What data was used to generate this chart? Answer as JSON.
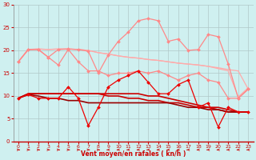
{
  "x": [
    0,
    1,
    2,
    3,
    4,
    5,
    6,
    7,
    8,
    9,
    10,
    11,
    12,
    13,
    14,
    15,
    16,
    17,
    18,
    19,
    20,
    21,
    22,
    23
  ],
  "bg_color": "#cff0f0",
  "grid_color": "#b0c8c8",
  "xlabel": "Vent moyen/en rafales ( kn/h )",
  "xlabel_color": "#cc0000",
  "tick_color": "#cc0000",
  "xlim": [
    -0.5,
    23.5
  ],
  "ylim": [
    0,
    30
  ],
  "yticks": [
    0,
    5,
    10,
    15,
    20,
    25,
    30
  ],
  "series": [
    {
      "name": "light_pink_smooth1",
      "color": "#ffaaaa",
      "lw": 0.9,
      "marker": null,
      "y": [
        17.5,
        20.2,
        20.3,
        20.2,
        20.3,
        20.3,
        20.2,
        20.0,
        19.5,
        19.2,
        18.8,
        18.5,
        18.3,
        18.0,
        17.8,
        17.5,
        17.2,
        17.0,
        16.8,
        16.5,
        16.2,
        15.8,
        15.5,
        11.5
      ]
    },
    {
      "name": "light_pink_smooth2",
      "color": "#ffaaaa",
      "lw": 0.9,
      "marker": null,
      "y": [
        17.5,
        20.2,
        20.3,
        20.2,
        20.3,
        20.3,
        20.2,
        20.0,
        19.5,
        19.2,
        18.8,
        18.5,
        18.3,
        18.0,
        17.8,
        17.5,
        17.2,
        17.0,
        16.8,
        16.5,
        16.0,
        15.5,
        9.8,
        11.8
      ]
    },
    {
      "name": "pink_dots_upper",
      "color": "#ff8888",
      "lw": 0.9,
      "marker": "D",
      "ms": 2.0,
      "y": [
        17.5,
        20.2,
        20.2,
        18.5,
        20.2,
        20.3,
        20.2,
        19.8,
        15.0,
        19.0,
        22.0,
        24.0,
        26.5,
        27.0,
        26.5,
        22.0,
        22.5,
        20.0,
        20.2,
        23.5,
        23.0,
        17.0,
        9.5,
        11.5
      ]
    },
    {
      "name": "pink_dots_lower",
      "color": "#ff8888",
      "lw": 0.9,
      "marker": "D",
      "ms": 2.0,
      "y": [
        17.5,
        20.2,
        20.2,
        18.5,
        16.8,
        20.2,
        17.5,
        15.5,
        15.5,
        14.5,
        15.0,
        15.0,
        15.5,
        15.0,
        15.5,
        14.5,
        13.5,
        14.5,
        15.0,
        13.5,
        13.0,
        9.5,
        9.5,
        11.5
      ]
    },
    {
      "name": "dark_red_flat1",
      "color": "#cc0000",
      "lw": 1.2,
      "marker": null,
      "y": [
        9.5,
        10.5,
        10.5,
        10.5,
        10.5,
        10.5,
        10.5,
        10.5,
        10.5,
        10.5,
        10.5,
        10.5,
        10.5,
        10.0,
        10.0,
        9.5,
        9.0,
        8.5,
        8.0,
        7.5,
        7.5,
        7.0,
        6.5,
        6.5
      ]
    },
    {
      "name": "dark_red_flat2",
      "color": "#cc0000",
      "lw": 1.2,
      "marker": null,
      "y": [
        9.5,
        10.5,
        10.5,
        10.5,
        10.5,
        10.5,
        10.5,
        10.5,
        10.5,
        10.0,
        10.0,
        9.5,
        9.5,
        9.0,
        9.0,
        8.5,
        8.5,
        8.0,
        7.5,
        7.5,
        7.0,
        6.5,
        6.5,
        6.5
      ]
    },
    {
      "name": "dark_red_flat3",
      "color": "#990000",
      "lw": 1.2,
      "marker": null,
      "y": [
        9.5,
        10.3,
        10.0,
        9.5,
        9.5,
        9.0,
        9.0,
        8.5,
        8.5,
        8.5,
        8.5,
        8.5,
        8.5,
        8.5,
        8.5,
        8.5,
        8.0,
        7.5,
        7.5,
        7.0,
        7.0,
        6.5,
        6.5,
        6.5
      ]
    },
    {
      "name": "red_markers",
      "color": "#ee0000",
      "lw": 0.9,
      "marker": "D",
      "ms": 2.0,
      "y": [
        9.5,
        10.3,
        9.5,
        9.5,
        9.5,
        12.0,
        9.5,
        3.5,
        7.5,
        12.0,
        13.5,
        14.5,
        15.5,
        13.0,
        10.5,
        10.5,
        12.5,
        13.5,
        7.5,
        8.5,
        3.2,
        7.5,
        6.5,
        6.5
      ]
    }
  ],
  "arrow_color": "#cc0000",
  "arrows_right": [
    0,
    1,
    2,
    3,
    4,
    5,
    6,
    7,
    8
  ],
  "arrows_left": [
    9,
    10,
    11,
    12,
    13,
    14,
    15,
    16,
    17,
    18,
    19,
    20,
    21,
    22,
    23
  ]
}
